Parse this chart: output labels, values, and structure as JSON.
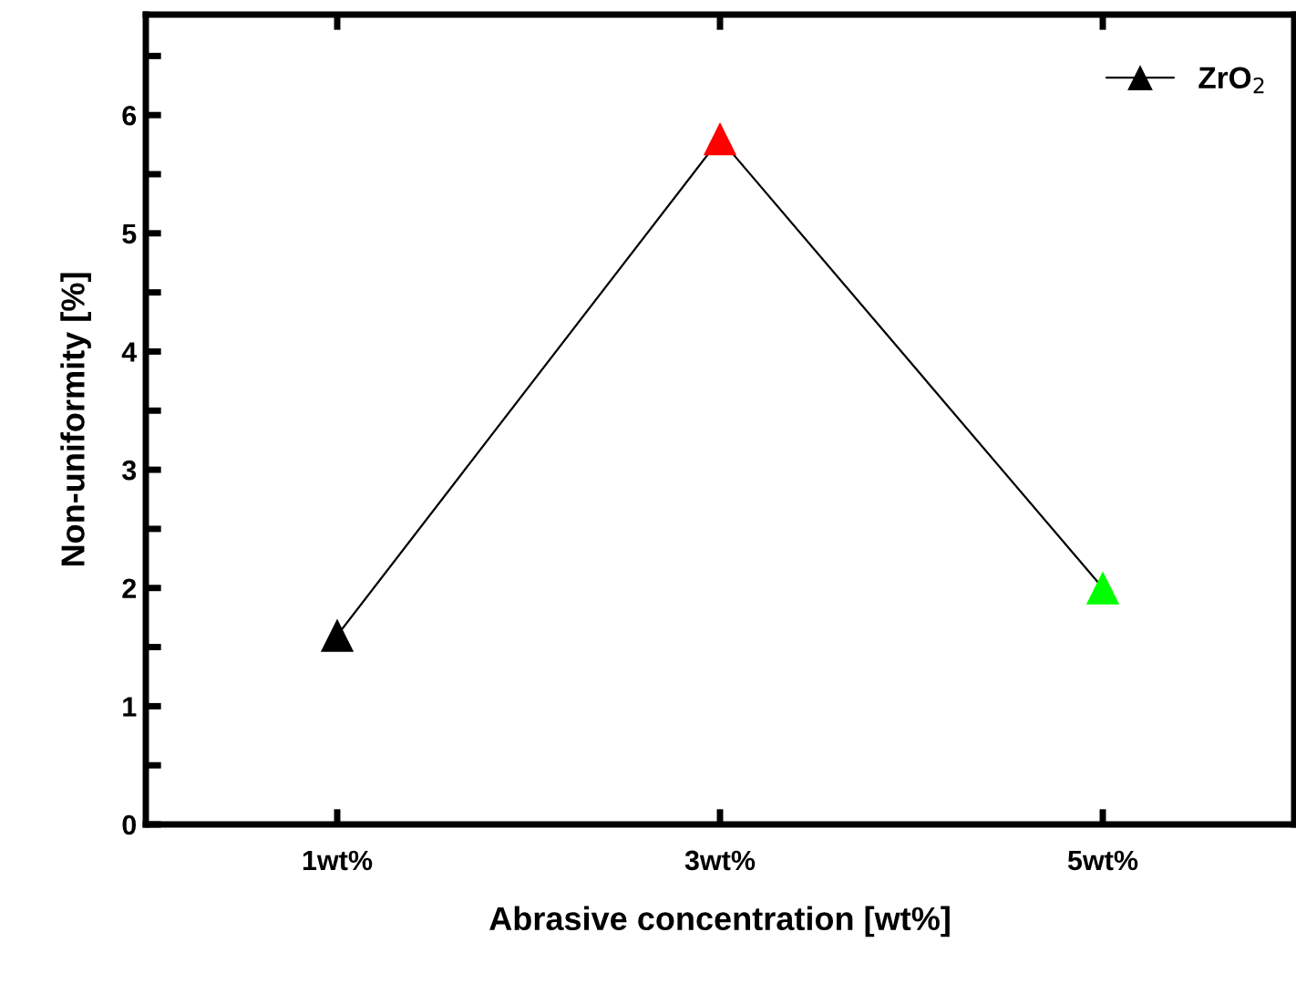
{
  "chart_data": {
    "type": "line",
    "xlabel": "Abrasive concentration [wt%]",
    "ylabel": "Non-uniformity [%]",
    "categories": [
      "1wt%",
      "3wt%",
      "5wt%"
    ],
    "series": [
      {
        "name": "ZrO$_{2}$",
        "color": "#000000",
        "colors": [
          "#000000",
          "#ff0000",
          "#00ff00"
        ],
        "values": [
          1.6,
          5.8,
          2.0
        ]
      }
    ],
    "ylim": [
      0,
      6.85
    ],
    "yticks": [
      0,
      {
        "value": 0.5,
        "label": null
      },
      1,
      {
        "value": 1.5,
        "label": null
      },
      2,
      {
        "value": 2.5,
        "label": null
      },
      3,
      {
        "value": 3.5,
        "label": null
      },
      4,
      {
        "value": 4.5,
        "label": null
      },
      5,
      {
        "value": 5.5,
        "label": null
      },
      6,
      {
        "value": 6.5,
        "label": null
      }
    ],
    "marker": "triangle",
    "line_style": "solid",
    "legend": "top right",
    "grid": false
  }
}
